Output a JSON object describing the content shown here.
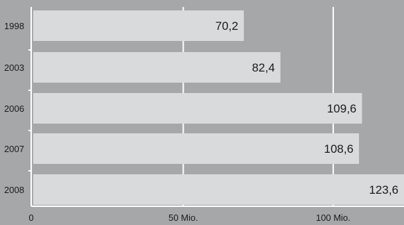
{
  "chart_data": {
    "type": "bar",
    "orientation": "horizontal",
    "categories": [
      "1998",
      "2003",
      "2006",
      "2007",
      "2008"
    ],
    "values": [
      70.2,
      82.4,
      109.6,
      108.6,
      123.6
    ],
    "value_labels": [
      "70,2",
      "82,4",
      "109,6",
      "108,6",
      "123,6"
    ],
    "title": "",
    "xlabel": "",
    "ylabel": "",
    "xlim": [
      0,
      123.6
    ],
    "x_ticks": [
      {
        "value": 0,
        "label": "0"
      },
      {
        "value": 50,
        "label": "50 Mio."
      },
      {
        "value": 100,
        "label": "100 Mio."
      }
    ],
    "grid": true,
    "legend": "none",
    "colors": {
      "background": "#a5a7a9",
      "bar": "#d9dadb",
      "grid": "#ffffff",
      "text": "#1a1a1a"
    }
  }
}
